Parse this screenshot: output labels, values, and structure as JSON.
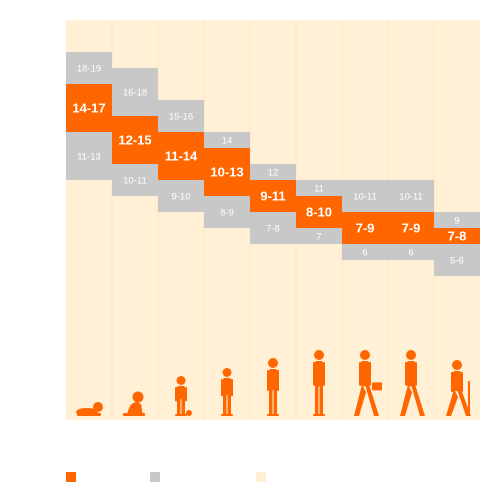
{
  "chart_data": {
    "type": "bar",
    "title": "",
    "xlabel": "",
    "ylabel": "",
    "ylim": [
      0,
      20
    ],
    "grid": false,
    "categories": [
      {
        "icon": "newborn-icon",
        "recommended": "14-17",
        "upper": "18-19",
        "lower": "11-13",
        "rec": [
          14,
          17
        ],
        "up": [
          17,
          19
        ],
        "low": [
          11,
          14
        ]
      },
      {
        "icon": "infant-icon",
        "recommended": "12-15",
        "upper": "16-18",
        "lower": "10-11",
        "rec": [
          12,
          15
        ],
        "up": [
          15,
          18
        ],
        "low": [
          10,
          12
        ]
      },
      {
        "icon": "toddler-icon",
        "recommended": "11-14",
        "upper": "15-16",
        "lower": "9-10",
        "rec": [
          11,
          14
        ],
        "up": [
          14,
          16
        ],
        "low": [
          9,
          11
        ]
      },
      {
        "icon": "preschooler-icon",
        "recommended": "10-13",
        "upper": "14",
        "lower": "8-9",
        "rec": [
          10,
          13
        ],
        "up": [
          13,
          14
        ],
        "low": [
          8,
          10
        ]
      },
      {
        "icon": "school-age-icon",
        "recommended": "9-11",
        "upper": "12",
        "lower": "7-8",
        "rec": [
          9,
          11
        ],
        "up": [
          11,
          12
        ],
        "low": [
          7,
          9
        ]
      },
      {
        "icon": "teenager-icon",
        "recommended": "8-10",
        "upper": "11",
        "lower": "7",
        "rec": [
          8,
          10
        ],
        "up": [
          10,
          11
        ],
        "low": [
          7,
          8
        ]
      },
      {
        "icon": "young-adult-icon",
        "recommended": "7-9",
        "upper": "10-11",
        "lower": "6",
        "rec": [
          7,
          9
        ],
        "up": [
          9,
          11
        ],
        "low": [
          6,
          7
        ]
      },
      {
        "icon": "adult-icon",
        "recommended": "7-9",
        "upper": "10-11",
        "lower": "6",
        "rec": [
          7,
          9
        ],
        "up": [
          9,
          11
        ],
        "low": [
          6,
          7
        ]
      },
      {
        "icon": "older-adult-icon",
        "recommended": "7-8",
        "upper": "9",
        "lower": "5-6",
        "rec": [
          7,
          8
        ],
        "up": [
          8,
          9
        ],
        "low": [
          5,
          7
        ]
      }
    ],
    "series": [
      {
        "color": "#ff6600"
      },
      {
        "color": "#c8c8c8"
      },
      {
        "color": "#fff0d6"
      }
    ]
  },
  "legend": {
    "items": [
      {
        "label": "",
        "color": "#ff6600"
      },
      {
        "label": "",
        "color": "#c8c8c8"
      },
      {
        "label": "",
        "color": "#fff0d6"
      }
    ]
  },
  "colors": {
    "background": "#fff0d6",
    "recommended": "#ff6600",
    "may_be_appropriate": "#c8c8c8",
    "text_light": "#ffffff"
  }
}
